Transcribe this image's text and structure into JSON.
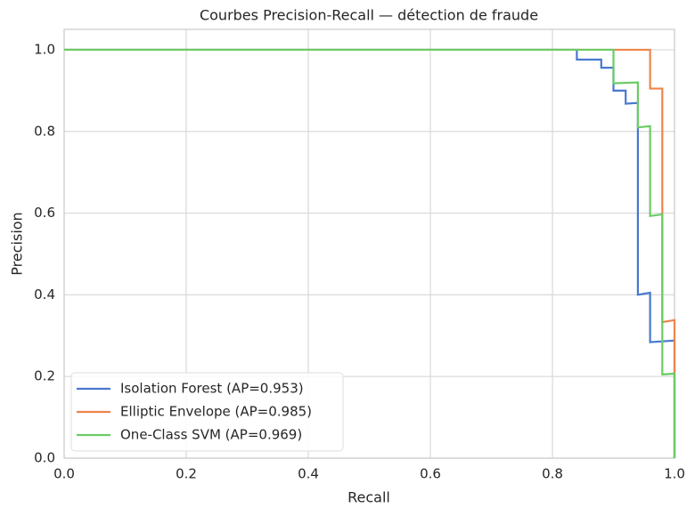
{
  "chart_data": {
    "type": "line",
    "title": "Courbes Precision-Recall — détection de fraude",
    "x_label": "Recall",
    "y_label": "Precision",
    "xlim": [
      0,
      1
    ],
    "ylim": [
      0,
      1.05
    ],
    "xticks": [
      {
        "value": 0,
        "label": "0.0"
      },
      {
        "value": 0.2,
        "label": "0.2"
      },
      {
        "value": 0.4,
        "label": "0.4"
      },
      {
        "value": 0.6,
        "label": "0.6"
      },
      {
        "value": 0.8,
        "label": "0.8"
      },
      {
        "value": 1,
        "label": "1.0"
      }
    ],
    "yticks": [
      {
        "value": 0,
        "label": "0.0"
      },
      {
        "value": 0.2,
        "label": "0.2"
      },
      {
        "value": 0.4,
        "label": "0.4"
      },
      {
        "value": 0.6,
        "label": "0.6"
      },
      {
        "value": 0.8,
        "label": "0.8"
      },
      {
        "value": 1,
        "label": "1.0"
      }
    ],
    "grid": true,
    "legend": "lower left",
    "series": [
      {
        "name": "Isolation Forest (AP=0.953)",
        "color": "#4878d0",
        "x": [
          0,
          0.84,
          0.84,
          0.88,
          0.88,
          0.9,
          0.9,
          0.92,
          0.92,
          0.94,
          0.94,
          0.96,
          0.96,
          1,
          1
        ],
        "values": [
          1,
          1,
          0.976,
          0.976,
          0.956,
          0.956,
          0.9,
          0.9,
          0.868,
          0.87,
          0.4,
          0.405,
          0.284,
          0.288,
          0
        ]
      },
      {
        "name": "Elliptic Envelope (AP=0.985)",
        "color": "#ee854a",
        "x": [
          0,
          0.96,
          0.96,
          0.98,
          0.98,
          1,
          1
        ],
        "values": [
          1,
          1,
          0.905,
          0.905,
          0.333,
          0.338,
          0
        ]
      },
      {
        "name": "One-Class SVM (AP=0.969)",
        "color": "#6acc64",
        "x": [
          0,
          0.9,
          0.9,
          0.94,
          0.94,
          0.96,
          0.96,
          0.98,
          0.98,
          1,
          1
        ],
        "values": [
          1,
          1,
          0.918,
          0.92,
          0.81,
          0.813,
          0.593,
          0.597,
          0.205,
          0.207,
          0
        ]
      }
    ]
  }
}
